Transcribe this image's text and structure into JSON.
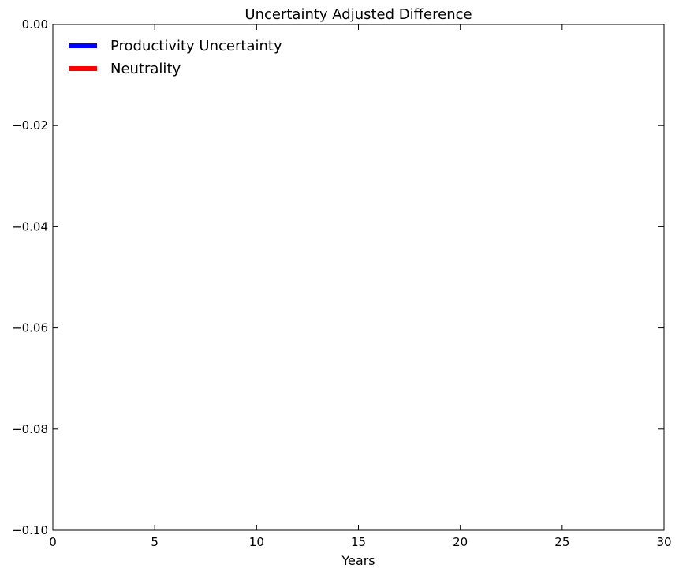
{
  "chart_data": {
    "type": "line",
    "title": "Uncertainty Adjusted Difference",
    "xlabel": "Years",
    "ylabel": "",
    "xlim": [
      0,
      30
    ],
    "ylim": [
      -0.1,
      0.0
    ],
    "x_ticks": [
      0,
      5,
      10,
      15,
      20,
      25,
      30
    ],
    "x_tick_labels": [
      "0",
      "5",
      "10",
      "15",
      "20",
      "25",
      "30"
    ],
    "y_ticks": [
      0.0,
      -0.02,
      -0.04,
      -0.06,
      -0.08,
      -0.1
    ],
    "y_tick_labels": [
      "0.00",
      "−0.02",
      "−0.04",
      "−0.06",
      "−0.08",
      "−0.10"
    ],
    "grid": false,
    "legend_position": "top-left",
    "series": [
      {
        "name": "Productivity Uncertainty",
        "color": "#0000ff",
        "x": [],
        "y": []
      },
      {
        "name": "Neutrality",
        "color": "#ff0000",
        "x": [],
        "y": []
      }
    ]
  }
}
